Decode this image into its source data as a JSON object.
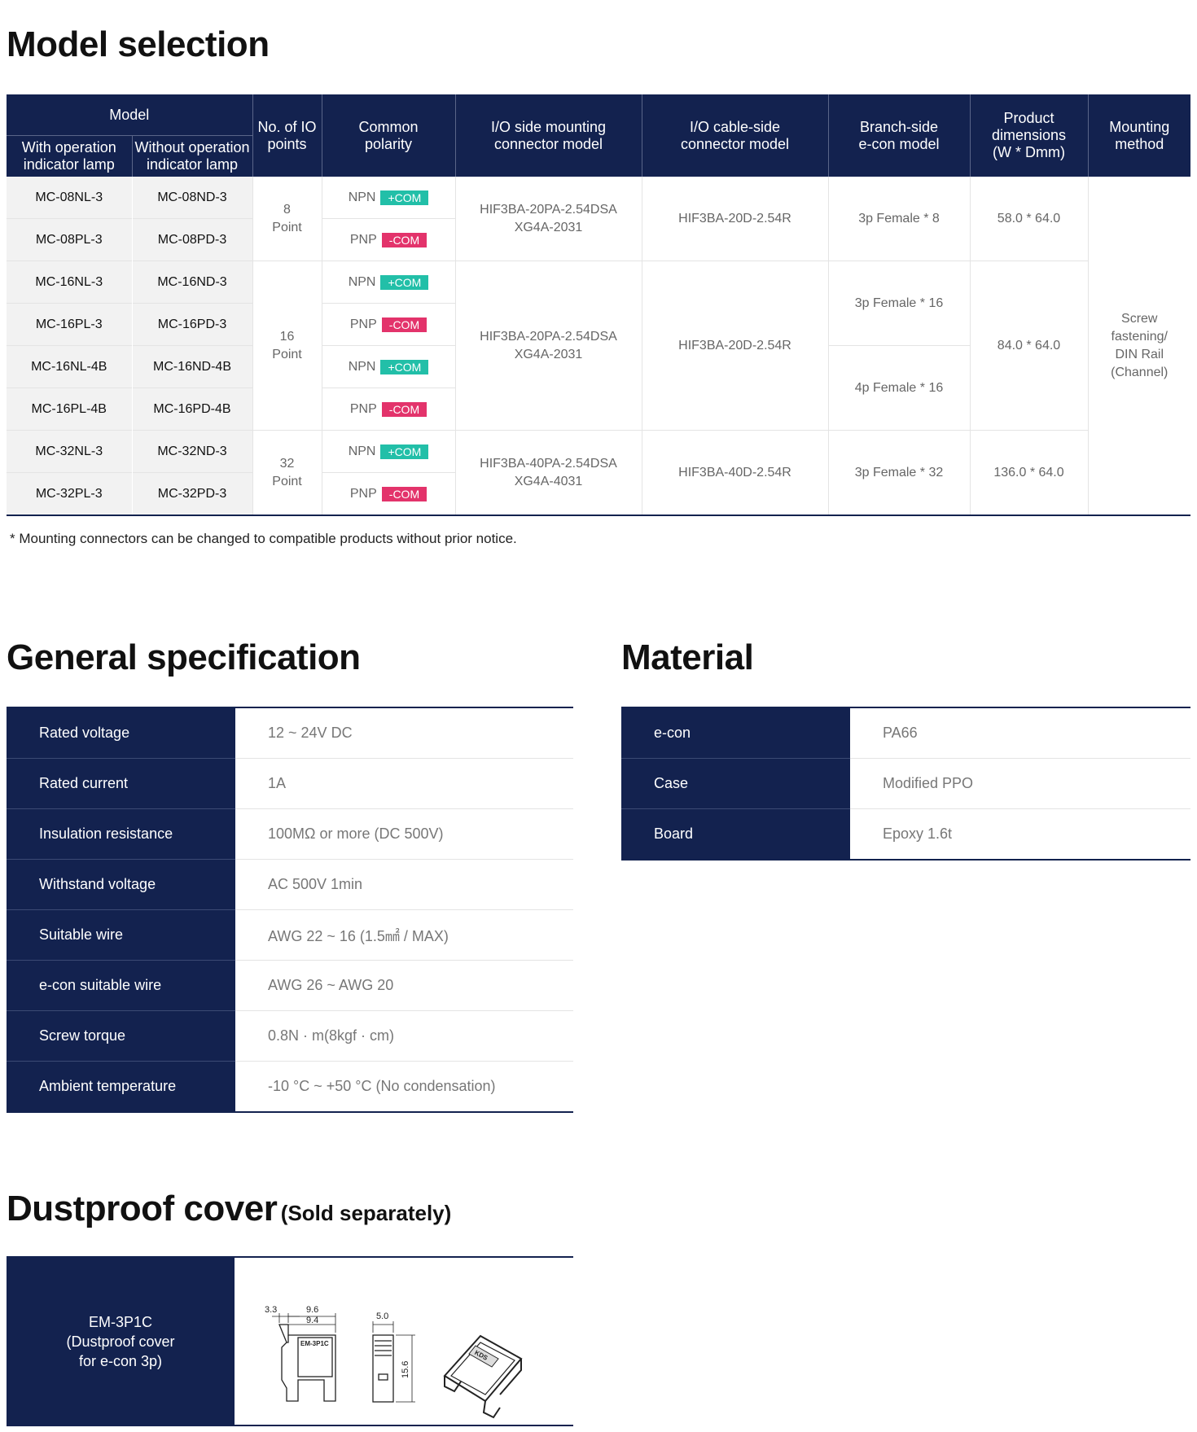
{
  "model_selection": {
    "title": "Model selection",
    "headers": {
      "model": "Model",
      "with_lamp": [
        "With operation",
        "indicator lamp"
      ],
      "without_lamp": [
        "Without operation",
        "indicator lamp"
      ],
      "io_points": [
        "No. of IO",
        "points"
      ],
      "polarity": [
        "Common",
        "polarity"
      ],
      "io_side": [
        "I/O side mounting",
        "connector model"
      ],
      "io_cable": [
        "I/O cable-side",
        "connector model"
      ],
      "branch": [
        "Branch-side",
        "e-con model"
      ],
      "dimensions": [
        "Product",
        "dimensions",
        "(W * Dmm)"
      ],
      "mounting": [
        "Mounting",
        "method"
      ]
    },
    "rows": [
      {
        "with": "MC-08NL-3",
        "without": "MC-08ND-3",
        "pol": "NPN",
        "com": "+COM"
      },
      {
        "with": "MC-08PL-3",
        "without": "MC-08PD-3",
        "pol": "PNP",
        "com": "-COM"
      },
      {
        "with": "MC-16NL-3",
        "without": "MC-16ND-3",
        "pol": "NPN",
        "com": "+COM"
      },
      {
        "with": "MC-16PL-3",
        "without": "MC-16PD-3",
        "pol": "PNP",
        "com": "-COM"
      },
      {
        "with": "MC-16NL-4B",
        "without": "MC-16ND-4B",
        "pol": "NPN",
        "com": "+COM"
      },
      {
        "with": "MC-16PL-4B",
        "without": "MC-16PD-4B",
        "pol": "PNP",
        "com": "-COM"
      },
      {
        "with": "MC-32NL-3",
        "without": "MC-32ND-3",
        "pol": "NPN",
        "com": "+COM"
      },
      {
        "with": "MC-32PL-3",
        "without": "MC-32PD-3",
        "pol": "PNP",
        "com": "-COM"
      }
    ],
    "groups": [
      {
        "points": [
          "8",
          "Point"
        ],
        "io_side": [
          "HIF3BA-20PA-2.54DSA",
          "XG4A-2031"
        ],
        "io_cable": "HIF3BA-20D-2.54R",
        "branch": "3p Female * 8",
        "dims": "58.0 * 64.0"
      },
      {
        "points": [
          "16",
          "Point"
        ],
        "io_side": [
          "HIF3BA-20PA-2.54DSA",
          "XG4A-2031"
        ],
        "io_cable": "HIF3BA-20D-2.54R",
        "branch_a": "3p Female * 16",
        "branch_b": "4p Female * 16",
        "dims": "84.0 * 64.0"
      },
      {
        "points": [
          "32",
          "Point"
        ],
        "io_side": [
          "HIF3BA-40PA-2.54DSA",
          "XG4A-4031"
        ],
        "io_cable": "HIF3BA-40D-2.54R",
        "branch": "3p Female * 32",
        "dims": "136.0 * 64.0"
      }
    ],
    "mounting": [
      "Screw",
      "fastening/",
      "DIN Rail",
      "(Channel)"
    ],
    "note": "* Mounting connectors can be changed to compatible products without prior notice."
  },
  "general_spec": {
    "title": "General specification",
    "rows": [
      {
        "k": "Rated voltage",
        "v": "12 ~ 24V DC"
      },
      {
        "k": "Rated current",
        "v": "1A"
      },
      {
        "k": "Insulation resistance",
        "v": "100MΩ or more (DC 500V)"
      },
      {
        "k": "Withstand voltage",
        "v": "AC 500V 1min"
      },
      {
        "k": "Suitable wire",
        "v": "AWG 22 ~ 16 (1.5㎟ / MAX)"
      },
      {
        "k": "e-con suitable wire",
        "v": "AWG 26 ~ AWG 20"
      },
      {
        "k": "Screw torque",
        "v": "0.8N · m(8kgf · cm)"
      },
      {
        "k": "Ambient temperature",
        "v": "-10 °C ~ +50 °C (No condensation)"
      }
    ]
  },
  "material": {
    "title": "Material",
    "rows": [
      {
        "k": "e-con",
        "v": "PA66"
      },
      {
        "k": "Case",
        "v": "Modified PPO"
      },
      {
        "k": "Board",
        "v": "Epoxy 1.6t"
      }
    ]
  },
  "dustproof": {
    "title": "Dustproof cover",
    "subtitle": "(Sold separately)",
    "model": "EM-3P1C",
    "desc": [
      "(Dustproof cover",
      "for e-con 3p)"
    ],
    "dims": {
      "a": "3.3",
      "b": "9.6",
      "c": "9.4",
      "d": "5.0",
      "e": "15.6"
    },
    "part_label": "EM-3P1C",
    "logo_text": "KDS"
  }
}
